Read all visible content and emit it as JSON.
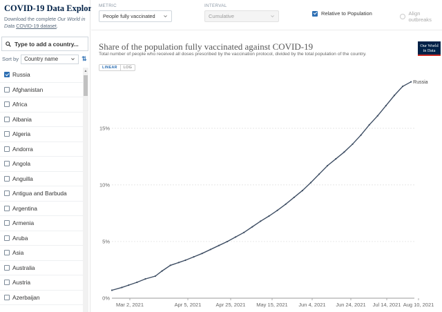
{
  "sidebar": {
    "title": "COVID-19 Data Explorer",
    "desc_pre": "Download the complete ",
    "desc_owid": "Our World in Data",
    "desc_link": "COVID-19 dataset",
    "desc_end": ".",
    "search_placeholder": "Type to add a country...",
    "sort_label": "Sort by",
    "sort_value": "Country name",
    "countries": [
      {
        "name": "Russia",
        "checked": true
      },
      {
        "name": "Afghanistan",
        "checked": false
      },
      {
        "name": "Africa",
        "checked": false
      },
      {
        "name": "Albania",
        "checked": false
      },
      {
        "name": "Algeria",
        "checked": false
      },
      {
        "name": "Andorra",
        "checked": false
      },
      {
        "name": "Angola",
        "checked": false
      },
      {
        "name": "Anguilla",
        "checked": false
      },
      {
        "name": "Antigua and Barbuda",
        "checked": false
      },
      {
        "name": "Argentina",
        "checked": false
      },
      {
        "name": "Armenia",
        "checked": false
      },
      {
        "name": "Aruba",
        "checked": false
      },
      {
        "name": "Asia",
        "checked": false
      },
      {
        "name": "Australia",
        "checked": false
      },
      {
        "name": "Austria",
        "checked": false
      },
      {
        "name": "Azerbaijan",
        "checked": false
      }
    ]
  },
  "controls": {
    "metric_label": "METRIC",
    "metric_value": "People fully vaccinated",
    "interval_label": "INTERVAL",
    "interval_value": "Cumulative",
    "relative_label": "Relative to Population",
    "align_label": "Align outbreaks"
  },
  "chart": {
    "logo_line1": "Our World",
    "logo_line2": "in Data",
    "linear_label": "LINEAR",
    "log_label": "LOG",
    "accent_color": "#3d4d63"
  },
  "chart_data": {
    "type": "line",
    "title": "Share of the population fully vaccinated against COVID-19",
    "subtitle": "Total number of people who received all doses prescribed by the vaccination protocol, divided by the total population of the country.",
    "yticks": [
      {
        "value": 0,
        "label": "0%"
      },
      {
        "value": 5,
        "label": "5%"
      },
      {
        "value": 10,
        "label": "10%"
      },
      {
        "value": 15,
        "label": "15%"
      }
    ],
    "ylim": [
      0,
      19.5
    ],
    "xlim": [
      "2021-02-20",
      "2021-08-20"
    ],
    "xticks": [
      "Mar 2, 2021",
      "Apr 5, 2021",
      "Apr 25, 2021",
      "May 15, 2021",
      "Jun 4, 2021",
      "Jun 24, 2021",
      "Jul 14, 2021",
      "Aug 10, 2021"
    ],
    "series": [
      {
        "name": "Russia",
        "x": [
          "2021-02-20",
          "2021-02-26",
          "2021-03-02",
          "2021-03-07",
          "2021-03-12",
          "2021-03-18",
          "2021-03-22",
          "2021-03-27",
          "2021-04-01",
          "2021-04-05",
          "2021-04-10",
          "2021-04-15",
          "2021-04-20",
          "2021-04-25",
          "2021-04-30",
          "2021-05-05",
          "2021-05-10",
          "2021-05-15",
          "2021-05-20",
          "2021-05-25",
          "2021-05-30",
          "2021-06-04",
          "2021-06-09",
          "2021-06-14",
          "2021-06-19",
          "2021-06-24",
          "2021-06-29",
          "2021-07-04",
          "2021-07-09",
          "2021-07-14",
          "2021-07-19",
          "2021-07-24",
          "2021-07-29",
          "2021-08-03",
          "2021-08-08",
          "2021-08-13",
          "2021-08-18"
        ],
        "y": [
          0.7,
          0.95,
          1.15,
          1.4,
          1.7,
          1.95,
          2.4,
          2.9,
          3.15,
          3.35,
          3.65,
          3.95,
          4.3,
          4.65,
          5.0,
          5.4,
          5.8,
          6.3,
          6.8,
          7.25,
          7.75,
          8.3,
          8.9,
          9.5,
          10.2,
          10.95,
          11.7,
          12.3,
          12.9,
          13.6,
          14.4,
          15.3,
          16.1,
          17.0,
          17.9,
          18.7,
          19.1
        ]
      }
    ]
  }
}
